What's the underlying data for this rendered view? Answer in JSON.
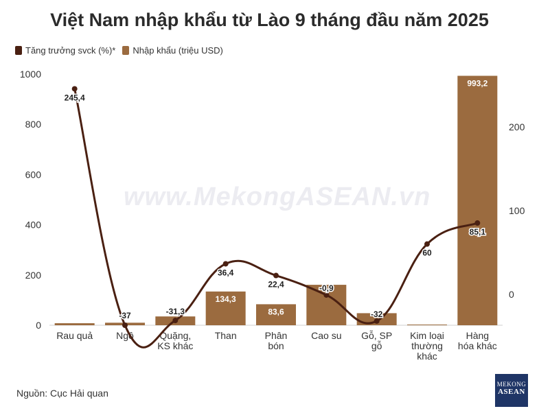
{
  "chart_data": {
    "type": "bar+line",
    "title": "Việt Nam nhập khẩu từ Lào 9 tháng đầu năm 2025",
    "categories": [
      [
        "Rau quả"
      ],
      [
        "Ngô"
      ],
      [
        "Quặng,",
        "KS khác"
      ],
      [
        "Than"
      ],
      [
        "Phân",
        "bón"
      ],
      [
        "Cao su"
      ],
      [
        "Gỗ, SP",
        "gỗ"
      ],
      [
        "Kim loại",
        "thường",
        "khác"
      ],
      [
        "Hàng",
        "hóa khác"
      ]
    ],
    "series": [
      {
        "name": "Nhập khẩu (triệu USD)",
        "type": "bar",
        "axis": "left",
        "color": "#9b6b3f",
        "values": [
          8,
          10,
          35,
          134.3,
          83.6,
          161,
          48,
          2,
          993.2
        ],
        "labels": [
          "",
          "",
          "",
          "134,3",
          "83,6",
          "",
          "",
          "",
          "993,2"
        ]
      },
      {
        "name": "Tăng trưởng svck (%)*",
        "type": "line",
        "axis": "right",
        "color": "#4a2012",
        "values": [
          245.4,
          -37,
          -31.3,
          36.4,
          22.4,
          -0.9,
          -32,
          60,
          85.1
        ],
        "labels": [
          "245,4",
          "-37",
          "-31,3",
          "36,4",
          "22,4",
          "-0,9",
          "-32",
          "60",
          "85,1"
        ]
      }
    ],
    "y_left": {
      "min": 0,
      "max": 1000,
      "ticks": [
        0,
        200,
        400,
        600,
        800,
        1000
      ]
    },
    "y_right": {
      "min": -37,
      "max": 263,
      "ticks": [
        0,
        100,
        200
      ]
    },
    "legend_position": "top-left",
    "grid": false
  },
  "legend": {
    "line_label": "Tăng trưởng svck (%)*",
    "bar_label": "Nhập khẩu (triệu USD)",
    "line_color": "#4a2012",
    "bar_color": "#9b6b3f"
  },
  "watermark": "www.MekongASEAN.vn",
  "source": "Nguồn: Cục Hải quan",
  "logo": {
    "line1": "MEKONG",
    "line2": "ASEAN"
  }
}
